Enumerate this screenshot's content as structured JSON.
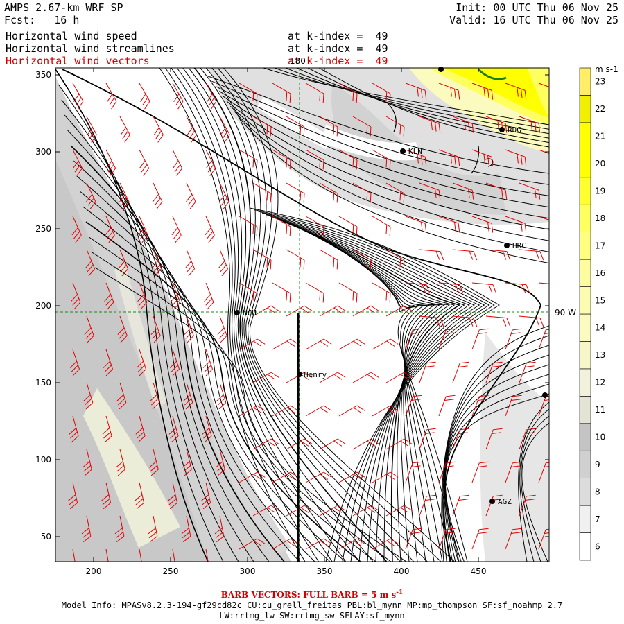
{
  "header": {
    "model_title": "AMPS 2.67-km WRF SP",
    "forecast": "Fcst:   16 h",
    "init": "Init: 00 UTC Thu 06 Nov 25",
    "valid": "Valid: 16 UTC Thu 06 Nov 25"
  },
  "fields": [
    {
      "name": "Horizontal wind speed",
      "level": "at k-index =  49",
      "color": "#000000"
    },
    {
      "name": "Horizontal wind streamlines",
      "level": "at k-index =  49",
      "color": "#000000"
    },
    {
      "name": "Horizontal wind vectors",
      "level": "at k-index =  49",
      "color": "#d40000"
    }
  ],
  "map": {
    "x_ticks": [
      "200",
      "250",
      "300",
      "350",
      "400",
      "450"
    ],
    "y_ticks": [
      "50",
      "100",
      "150",
      "200",
      "250",
      "300",
      "350"
    ],
    "meridian_label": "180",
    "parallel_label": "90 W",
    "stations": [
      {
        "name": "KLN"
      },
      {
        "name": "RDG"
      },
      {
        "name": "HRC"
      },
      {
        "name": "NCU"
      },
      {
        "name": "Henry"
      },
      {
        "name": "AGZ"
      }
    ]
  },
  "colorbar": {
    "unit": "m s-1",
    "levels": [
      "6",
      "7",
      "8",
      "9",
      "10",
      "11",
      "12",
      "13",
      "14",
      "15",
      "16",
      "17",
      "18",
      "19",
      "20",
      "21",
      "22",
      "23"
    ],
    "colors": [
      "#ffffff",
      "#f0f0f0",
      "#dcdcdc",
      "#d0d0d0",
      "#c4c4c4",
      "#e4e4d4",
      "#f2f2dc",
      "#f6f6c8",
      "#fbfbc0",
      "#fcfcb0",
      "#fdfda0",
      "#fefe80",
      "#ffff60",
      "#ffff30",
      "#ffff00",
      "#ffff00",
      "#f0f000",
      "#ffee66"
    ]
  },
  "footer": {
    "barb_note": "BARB VECTORS:  FULL BARB = 5 m s",
    "barb_exp": "-1",
    "model_info_1": "Model Info: MPASv8.2.3-194-gf29cd82c CU:cu_grell_freitas PBL:bl_mynn MP:mp_thompson SF:sf_noahmp 2.7",
    "model_info_2": "LW:rrtmg_lw SW:rrtmg_sw SFLAY:sf_mynn"
  }
}
